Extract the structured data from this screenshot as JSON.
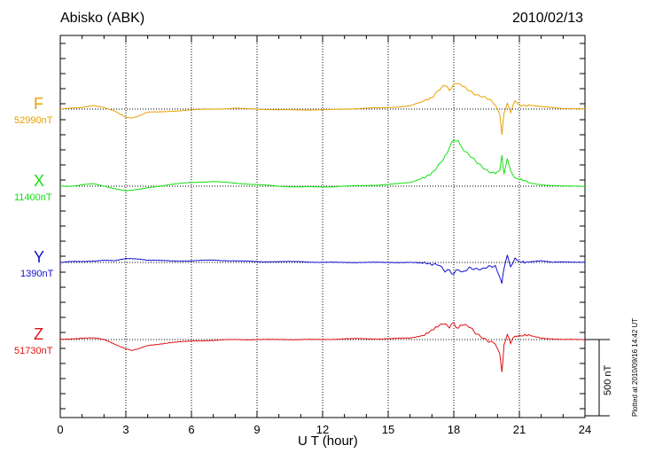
{
  "header": {
    "station": "Abisko (ABK)",
    "date": "2010/02/13"
  },
  "footnote": "Plotted at 2010/09/16 14:42 UT",
  "scale_bar": {
    "label": "500 nT",
    "value_nT": 500
  },
  "channels": [
    {
      "name": "F",
      "baseline": "52990nT",
      "color": "#e8a100"
    },
    {
      "name": "X",
      "baseline": "11400nT",
      "color": "#12e012"
    },
    {
      "name": "Y",
      "baseline": "1390nT",
      "color": "#1010d0"
    },
    {
      "name": "Z",
      "baseline": "51730nT",
      "color": "#e01010"
    }
  ],
  "chart_data": {
    "type": "line",
    "title": "Abisko (ABK)",
    "subtitle": "2010/02/13",
    "xlabel": "U T (hour)",
    "ylabel": "",
    "xlim": [
      0,
      24
    ],
    "xticks": [
      0,
      3,
      6,
      9,
      12,
      15,
      18,
      21,
      24
    ],
    "grid": true,
    "units": "nT",
    "series": [
      {
        "name": "F",
        "baseline_nT": 52990,
        "color": "#e8a100",
        "x": [
          0,
          0.5,
          1,
          1.5,
          2,
          2.5,
          3,
          3.3,
          3.6,
          4,
          4.5,
          5,
          6,
          7,
          8,
          9,
          10,
          11,
          12,
          13,
          14,
          15,
          16,
          16.5,
          17,
          17.3,
          17.6,
          17.8,
          18,
          18.2,
          18.4,
          18.7,
          19,
          19.3,
          19.6,
          19.9,
          20.1,
          20.2,
          20.3,
          20.45,
          20.6,
          20.8,
          21,
          21.5,
          22,
          22.5,
          23,
          24
        ],
        "y": [
          0,
          5,
          10,
          25,
          10,
          -15,
          -55,
          -60,
          -45,
          -20,
          -20,
          -15,
          -5,
          0,
          5,
          0,
          -5,
          -5,
          -5,
          0,
          5,
          10,
          20,
          45,
          80,
          120,
          150,
          130,
          155,
          175,
          145,
          125,
          100,
          80,
          60,
          30,
          -40,
          -160,
          -20,
          40,
          -15,
          50,
          30,
          25,
          15,
          10,
          5,
          0
        ]
      },
      {
        "name": "X",
        "baseline_nT": 11400,
        "color": "#12e012",
        "x": [
          0,
          0.5,
          1,
          1.5,
          2,
          2.5,
          3,
          3.3,
          3.6,
          4,
          5,
          6,
          7,
          8,
          9,
          10,
          11,
          12,
          13,
          14,
          15,
          16,
          16.5,
          17,
          17.3,
          17.6,
          17.8,
          18,
          18.2,
          18.4,
          18.7,
          19,
          19.3,
          19.6,
          19.9,
          20.1,
          20.2,
          20.3,
          20.45,
          20.6,
          20.8,
          21,
          21.5,
          22,
          22.5,
          23,
          24
        ],
        "y": [
          0,
          0,
          10,
          15,
          0,
          -15,
          -30,
          -25,
          -20,
          -10,
          10,
          25,
          30,
          20,
          10,
          0,
          -5,
          -5,
          0,
          5,
          10,
          25,
          50,
          80,
          140,
          200,
          250,
          310,
          290,
          250,
          200,
          160,
          130,
          100,
          80,
          110,
          200,
          70,
          180,
          90,
          60,
          40,
          20,
          10,
          5,
          0,
          0
        ]
      },
      {
        "name": "Y",
        "baseline_nT": 1390,
        "color": "#1010d0",
        "x": [
          0,
          0.5,
          1,
          1.5,
          2,
          2.5,
          3,
          3.5,
          4,
          5,
          6,
          7,
          8,
          9,
          10,
          11,
          12,
          13,
          14,
          15,
          16,
          17,
          17.3,
          17.6,
          17.8,
          18,
          18.2,
          18.4,
          18.7,
          19,
          19.3,
          19.6,
          19.9,
          20.1,
          20.2,
          20.3,
          20.45,
          20.6,
          20.8,
          21,
          21.5,
          22,
          22.5,
          23,
          24
        ],
        "y": [
          0,
          5,
          5,
          10,
          15,
          10,
          25,
          25,
          15,
          10,
          10,
          15,
          10,
          5,
          5,
          5,
          0,
          0,
          0,
          0,
          0,
          -10,
          -20,
          -60,
          -50,
          -80,
          -40,
          -70,
          -30,
          -40,
          -50,
          -30,
          -20,
          -100,
          -140,
          -30,
          50,
          -20,
          20,
          10,
          5,
          10,
          0,
          5,
          0
        ]
      },
      {
        "name": "Z",
        "baseline_nT": 51730,
        "color": "#e01010",
        "x": [
          0,
          0.5,
          1,
          1.5,
          2,
          2.5,
          3,
          3.3,
          3.6,
          4,
          5,
          6,
          7,
          8,
          9,
          10,
          11,
          12,
          13,
          14,
          15,
          16,
          16.5,
          17,
          17.5,
          17.8,
          18,
          18.2,
          18.4,
          18.7,
          19,
          19.3,
          19.6,
          19.9,
          20.1,
          20.2,
          20.3,
          20.45,
          20.6,
          20.8,
          21,
          21.5,
          22,
          22.5,
          23,
          24
        ],
        "y": [
          0,
          5,
          10,
          10,
          0,
          -30,
          -60,
          -70,
          -60,
          -40,
          -20,
          -10,
          -5,
          0,
          0,
          0,
          0,
          0,
          5,
          5,
          5,
          10,
          25,
          60,
          100,
          80,
          110,
          70,
          100,
          80,
          40,
          20,
          -10,
          -30,
          -90,
          -210,
          -40,
          30,
          -30,
          30,
          20,
          25,
          10,
          5,
          0,
          0
        ]
      }
    ]
  }
}
